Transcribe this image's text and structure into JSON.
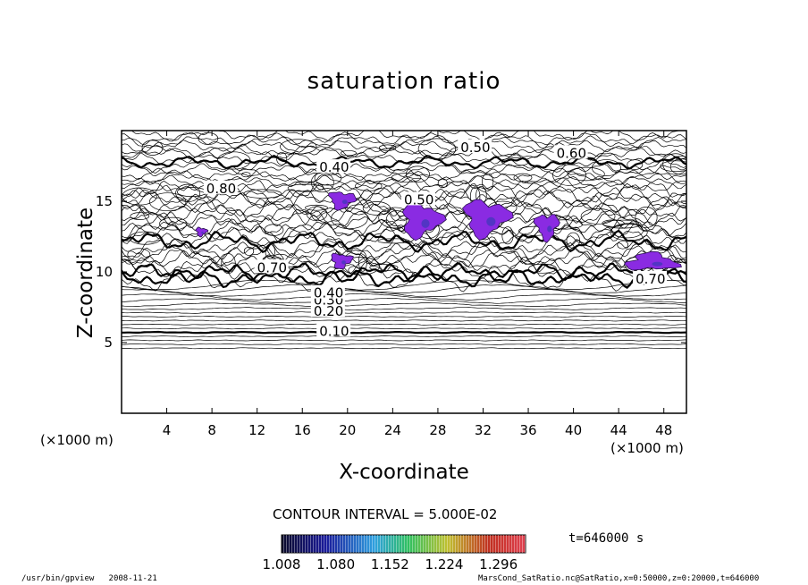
{
  "chart_data": {
    "type": "contour",
    "title": "saturation ratio",
    "xlabel": "X-coordinate",
    "ylabel": "Z-coordinate",
    "x_unit": "(×1000 m)",
    "z_unit": "(×1000 m)",
    "xlim": [
      0,
      50
    ],
    "ylim": [
      0,
      20
    ],
    "x_ticks": [
      "4",
      "8",
      "12",
      "16",
      "20",
      "24",
      "28",
      "32",
      "36",
      "40",
      "44",
      "48"
    ],
    "y_ticks": [
      "5",
      "10",
      "15"
    ],
    "contour_interval_text": "CONTOUR INTERVAL = 5.000E-02",
    "contour_labels": [
      {
        "text": "0.10",
        "x": 17.5,
        "z": 5.8
      },
      {
        "text": "0.20",
        "x": 17.0,
        "z": 7.2
      },
      {
        "text": "0.30",
        "x": 17.0,
        "z": 8.0
      },
      {
        "text": "0.40",
        "x": 17.0,
        "z": 8.5
      },
      {
        "text": "0.50",
        "x": 30.0,
        "z": 18.8
      },
      {
        "text": "0.60",
        "x": 38.5,
        "z": 18.4
      },
      {
        "text": "0.40",
        "x": 17.5,
        "z": 17.4
      },
      {
        "text": "0.80",
        "x": 7.5,
        "z": 15.9
      },
      {
        "text": "0.50",
        "x": 25.0,
        "z": 15.1
      },
      {
        "text": "0.70",
        "x": 12.0,
        "z": 10.3
      },
      {
        "text": "0.70",
        "x": 45.5,
        "z": 9.5
      }
    ],
    "colorbar": {
      "ticks": [
        "1.008",
        "1.080",
        "1.152",
        "1.224",
        "1.296"
      ],
      "range": [
        1.008,
        1.332
      ],
      "colors": [
        "#0a0a2a",
        "#1a1a9a",
        "#2fa0e0",
        "#2fc060",
        "#c0c030",
        "#c03020",
        "#e04050"
      ]
    },
    "supersaturated_regions": [
      {
        "x": [
          18.2,
          20.8
        ],
        "z": [
          14.4,
          15.8
        ]
      },
      {
        "x": [
          18.4,
          20.5
        ],
        "z": [
          10.2,
          11.4
        ]
      },
      {
        "x": [
          24.5,
          28.5
        ],
        "z": [
          12.3,
          15.1
        ]
      },
      {
        "x": [
          30.0,
          34.5
        ],
        "z": [
          12.4,
          15.3
        ]
      },
      {
        "x": [
          36.5,
          38.8
        ],
        "z": [
          12.2,
          14.3
        ]
      },
      {
        "x": [
          44.3,
          49.5
        ],
        "z": [
          10.0,
          11.4
        ]
      },
      {
        "x": [
          6.5,
          7.6
        ],
        "z": [
          12.5,
          13.2
        ]
      }
    ],
    "grid": false,
    "legend": "colorbar bottom-center"
  },
  "time_text": "t=646000 s",
  "footer": {
    "program": "/usr/bin/gpview",
    "date": "2008-11-21",
    "source": "MarsCond_SatRatio.nc@SatRatio,x=0:50000,z=0:20000,t=646000"
  },
  "colors": {
    "supersat_fill": "#8a2be2",
    "supersat_core": "#3a3ab8",
    "line": "#000000"
  }
}
